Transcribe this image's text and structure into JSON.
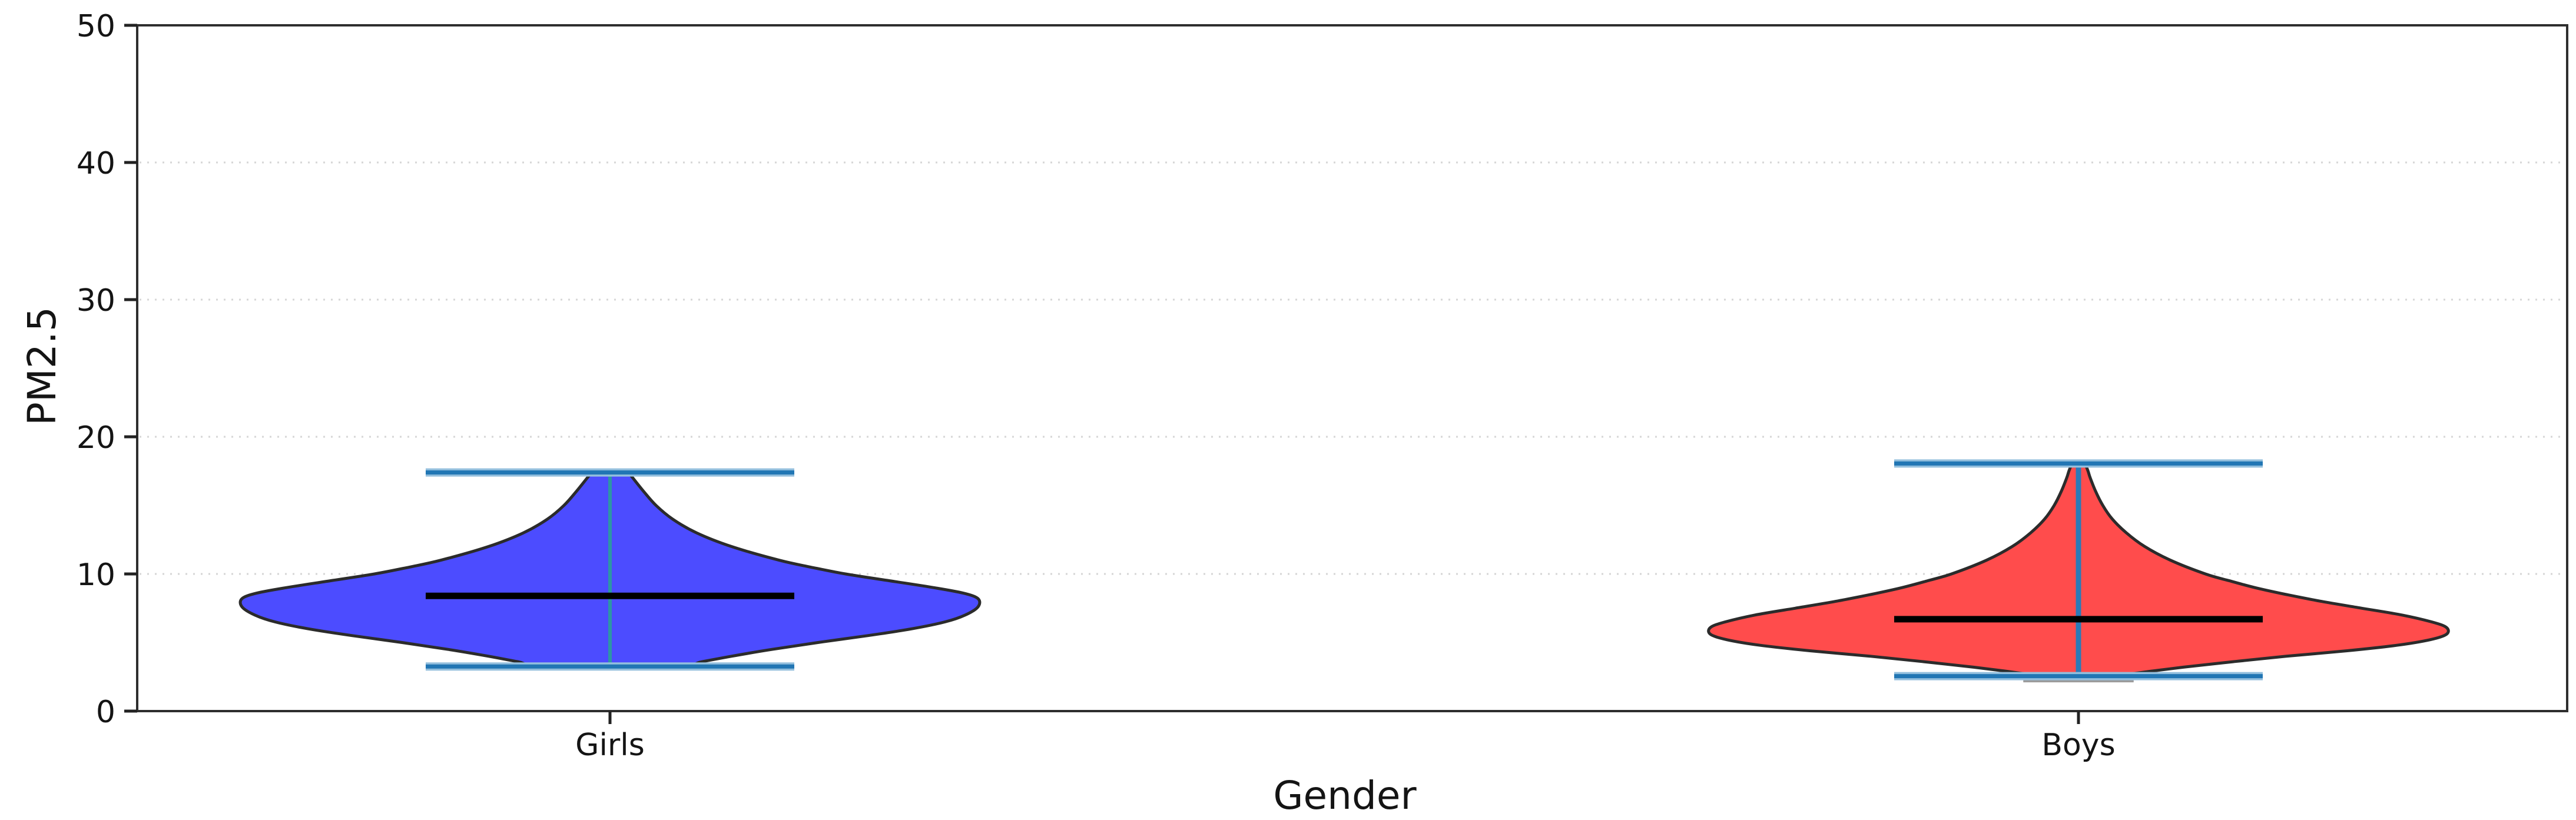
{
  "chart_data": {
    "type": "violin",
    "title": "",
    "xlabel": "Gender",
    "ylabel": "PM2.5",
    "ylim": [
      0,
      50
    ],
    "yticks": [
      0,
      10,
      20,
      30,
      40,
      50
    ],
    "grid": {
      "values": [
        10,
        20,
        30,
        40
      ],
      "style": "dotted",
      "color": "#d6d6d6",
      "position": "horizontal"
    },
    "legend": "none",
    "background_color": "#ffffff",
    "spine_color": "#2e2e2e",
    "text_color": "#141414",
    "categories": [
      "Girls",
      "Boys"
    ],
    "series": [
      {
        "name": "Girls",
        "fill_color": "#4c4cff",
        "edge_color": "#2b2b2b",
        "whisker_color": "#2d96a5",
        "whisker_width": 6,
        "cap_color": "#2176b4",
        "cap_halo_color": "#93bfdd",
        "median_color": "#000000",
        "min": 3.25,
        "max": 17.4,
        "median": 8.4,
        "density_profile": [
          [
            17.4,
            0.05
          ],
          [
            17.0,
            0.062
          ],
          [
            16.0,
            0.092
          ],
          [
            15.0,
            0.125
          ],
          [
            14.0,
            0.17
          ],
          [
            13.0,
            0.235
          ],
          [
            12.0,
            0.33
          ],
          [
            11.0,
            0.46
          ],
          [
            10.5,
            0.545
          ],
          [
            10.0,
            0.64
          ],
          [
            9.5,
            0.76
          ],
          [
            9.0,
            0.88
          ],
          [
            8.6,
            0.96
          ],
          [
            8.2,
            1.0
          ],
          [
            7.6,
            1.0
          ],
          [
            7.0,
            0.965
          ],
          [
            6.5,
            0.91
          ],
          [
            6.0,
            0.82
          ],
          [
            5.5,
            0.7
          ],
          [
            5.0,
            0.565
          ],
          [
            4.5,
            0.44
          ],
          [
            4.0,
            0.33
          ],
          [
            3.6,
            0.25
          ],
          [
            3.25,
            0.175
          ]
        ]
      },
      {
        "name": "Boys",
        "fill_color": "#ff4c4c",
        "edge_color": "#2b2b2b",
        "whisker_color": "#2b7ab8",
        "whisker_width": 9,
        "cap_color": "#2176b4",
        "cap_halo_color": "#93bfdd",
        "median_color": "#000000",
        "min": 2.55,
        "max": 18.05,
        "median": 6.7,
        "tip_bar": {
          "value": 2.25,
          "half_frac": 0.15,
          "color": "#9b9b9b"
        },
        "density_profile": [
          [
            18.05,
            0.018
          ],
          [
            17.5,
            0.026
          ],
          [
            17.0,
            0.032
          ],
          [
            16.0,
            0.047
          ],
          [
            15.0,
            0.066
          ],
          [
            14.0,
            0.092
          ],
          [
            13.0,
            0.13
          ],
          [
            12.0,
            0.18
          ],
          [
            11.0,
            0.25
          ],
          [
            10.0,
            0.345
          ],
          [
            9.5,
            0.41
          ],
          [
            9.0,
            0.48
          ],
          [
            8.5,
            0.565
          ],
          [
            8.0,
            0.66
          ],
          [
            7.5,
            0.77
          ],
          [
            7.0,
            0.88
          ],
          [
            6.5,
            0.96
          ],
          [
            6.1,
            1.0
          ],
          [
            5.6,
            1.0
          ],
          [
            5.2,
            0.955
          ],
          [
            4.8,
            0.865
          ],
          [
            4.4,
            0.73
          ],
          [
            4.0,
            0.565
          ],
          [
            3.6,
            0.42
          ],
          [
            3.2,
            0.285
          ],
          [
            2.9,
            0.195
          ],
          [
            2.7,
            0.14
          ],
          [
            2.55,
            0.1
          ]
        ]
      }
    ]
  }
}
